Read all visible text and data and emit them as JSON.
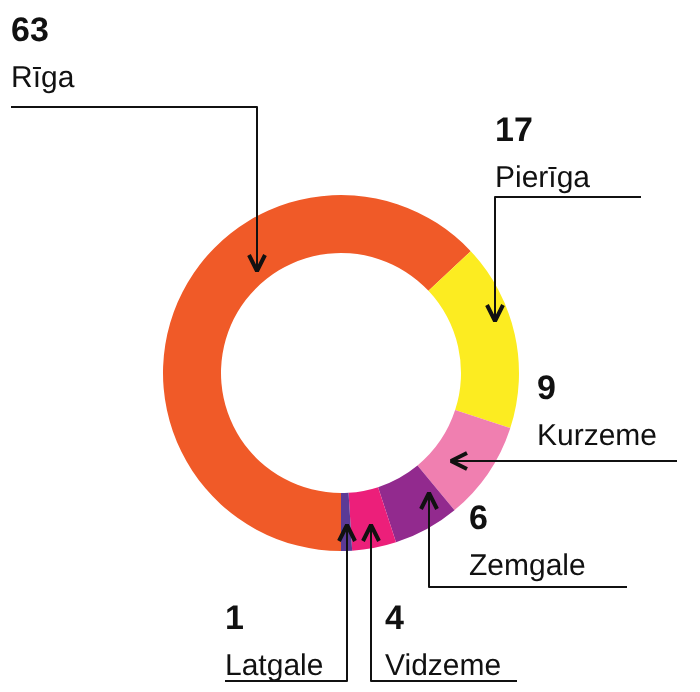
{
  "chart_data": {
    "type": "donut",
    "categories": [
      "Rīga",
      "Pierīga",
      "Kurzeme",
      "Zemgale",
      "Vidzeme",
      "Latgale"
    ],
    "values": [
      63,
      17,
      9,
      6,
      4,
      1
    ],
    "colors": [
      "#f05a28",
      "#fcec21",
      "#f07fb0",
      "#922a8e",
      "#ec1f7a",
      "#5b3a96"
    ],
    "data_labels": true
  }
}
